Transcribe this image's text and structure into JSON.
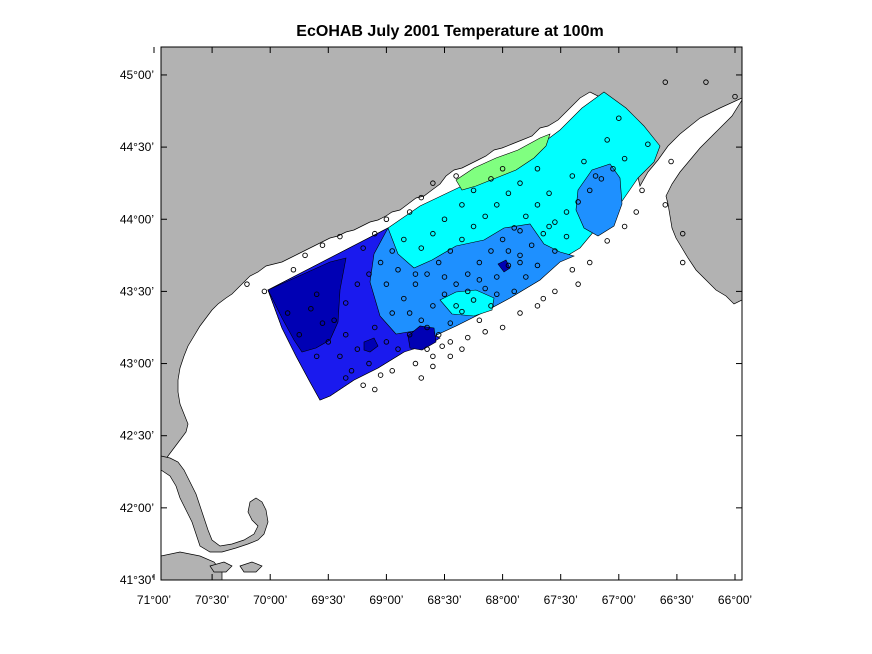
{
  "title": "EcOHAB   July 2001   Temperature at 100m",
  "x_axis": {
    "ticks": [
      "71°00’",
      "70°30’",
      "70°00’",
      "69°30’",
      "69°00’",
      "68°30’",
      "68°00’",
      "67°30’",
      "67°00’",
      "66°30’",
      "66°00’"
    ],
    "lon_values": [
      -71.0,
      -70.5,
      -70.0,
      -69.5,
      -69.0,
      -68.5,
      -68.0,
      -67.5,
      -67.0,
      -66.5,
      -66.0
    ],
    "range": [
      -71.0,
      -66.0
    ]
  },
  "y_axis": {
    "ticks": [
      "45°00’",
      "44°30’",
      "44°00’",
      "43°30’",
      "43°00’",
      "42°30’",
      "42°00’",
      "41°30’"
    ],
    "lat_values": [
      45.0,
      44.5,
      44.0,
      43.5,
      43.0,
      42.5,
      42.0,
      41.5
    ],
    "range": [
      41.5,
      45.2
    ]
  },
  "colors": {
    "land": "#b2b2b2",
    "water": "#ffffff",
    "band_coldest": "#0000b4",
    "band_cold": "#1a1aee",
    "band_mid": "#1e90ff",
    "band_warm": "#00ffff",
    "band_warmest": "#80ff80"
  },
  "stations": [
    [
      -69.35,
      43.42
    ],
    [
      -69.25,
      43.55
    ],
    [
      -69.15,
      43.62
    ],
    [
      -69.05,
      43.7
    ],
    [
      -68.95,
      43.78
    ],
    [
      -68.85,
      43.86
    ],
    [
      -69.45,
      43.3
    ],
    [
      -69.35,
      43.2
    ],
    [
      -69.25,
      43.1
    ],
    [
      -69.15,
      43.0
    ],
    [
      -69.05,
      42.92
    ],
    [
      -68.95,
      43.35
    ],
    [
      -68.85,
      43.45
    ],
    [
      -68.75,
      43.55
    ],
    [
      -68.65,
      43.62
    ],
    [
      -68.55,
      43.7
    ],
    [
      -68.45,
      43.78
    ],
    [
      -68.35,
      43.86
    ],
    [
      -68.25,
      43.95
    ],
    [
      -68.15,
      44.02
    ],
    [
      -68.05,
      44.1
    ],
    [
      -67.95,
      44.18
    ],
    [
      -67.85,
      44.25
    ],
    [
      -68.9,
      43.1
    ],
    [
      -68.8,
      43.2
    ],
    [
      -68.7,
      43.3
    ],
    [
      -68.6,
      43.4
    ],
    [
      -68.5,
      43.48
    ],
    [
      -68.4,
      43.55
    ],
    [
      -68.3,
      43.62
    ],
    [
      -68.2,
      43.7
    ],
    [
      -68.1,
      43.78
    ],
    [
      -68.0,
      43.86
    ],
    [
      -67.9,
      43.94
    ],
    [
      -67.8,
      44.02
    ],
    [
      -67.7,
      44.1
    ],
    [
      -67.6,
      44.18
    ],
    [
      -68.75,
      43.0
    ],
    [
      -68.65,
      43.1
    ],
    [
      -68.55,
      43.2
    ],
    [
      -68.45,
      43.28
    ],
    [
      -68.35,
      43.36
    ],
    [
      -68.25,
      43.44
    ],
    [
      -68.15,
      43.52
    ],
    [
      -68.05,
      43.6
    ],
    [
      -67.95,
      43.68
    ],
    [
      -67.85,
      43.75
    ],
    [
      -67.75,
      43.82
    ],
    [
      -67.65,
      43.9
    ],
    [
      -67.55,
      43.98
    ],
    [
      -67.45,
      44.05
    ],
    [
      -67.35,
      44.12
    ],
    [
      -67.25,
      44.2
    ],
    [
      -67.15,
      44.28
    ],
    [
      -67.05,
      44.35
    ],
    [
      -66.95,
      44.42
    ],
    [
      -66.75,
      44.52
    ],
    [
      -66.55,
      44.4
    ],
    [
      -66.6,
      44.1
    ],
    [
      -66.45,
      43.9
    ],
    [
      -66.45,
      43.7
    ],
    [
      -66.25,
      44.95
    ],
    [
      -66.0,
      44.85
    ],
    [
      -66.6,
      44.95
    ],
    [
      -67.0,
      44.7
    ],
    [
      -67.1,
      44.55
    ],
    [
      -69.6,
      43.48
    ],
    [
      -69.65,
      43.38
    ],
    [
      -69.55,
      43.28
    ],
    [
      -69.5,
      43.15
    ],
    [
      -69.4,
      43.05
    ],
    [
      -69.3,
      42.95
    ],
    [
      -69.2,
      42.85
    ],
    [
      -68.95,
      42.95
    ],
    [
      -68.7,
      42.9
    ],
    [
      -68.45,
      43.05
    ],
    [
      -68.3,
      43.18
    ],
    [
      -68.2,
      43.3
    ],
    [
      -68.1,
      43.4
    ],
    [
      -67.9,
      43.5
    ],
    [
      -67.8,
      43.6
    ],
    [
      -67.7,
      43.68
    ],
    [
      -67.55,
      43.78
    ],
    [
      -67.45,
      43.88
    ],
    [
      -69.0,
      43.55
    ],
    [
      -68.9,
      43.65
    ],
    [
      -68.7,
      43.8
    ],
    [
      -68.6,
      43.9
    ],
    [
      -68.5,
      44.0
    ],
    [
      -68.35,
      44.1
    ],
    [
      -68.25,
      44.2
    ],
    [
      -68.1,
      44.28
    ],
    [
      -68.0,
      44.35
    ],
    [
      -69.2,
      43.8
    ],
    [
      -69.1,
      43.9
    ],
    [
      -69.0,
      44.0
    ],
    [
      -68.8,
      44.05
    ],
    [
      -68.7,
      44.15
    ],
    [
      -68.6,
      44.25
    ],
    [
      -70.05,
      43.5
    ],
    [
      -70.2,
      43.55
    ],
    [
      -69.8,
      43.65
    ],
    [
      -69.7,
      43.75
    ],
    [
      -69.55,
      43.82
    ],
    [
      -69.4,
      43.88
    ],
    [
      -67.3,
      44.4
    ],
    [
      -67.2,
      44.3
    ],
    [
      -67.4,
      44.3
    ],
    [
      -68.4,
      44.3
    ],
    [
      -67.7,
      44.35
    ],
    [
      -69.1,
      43.25
    ],
    [
      -68.8,
      43.35
    ],
    [
      -68.45,
      43.15
    ],
    [
      -68.0,
      43.25
    ],
    [
      -67.65,
      43.45
    ],
    [
      -67.35,
      43.55
    ],
    [
      -67.25,
      43.7
    ],
    [
      -67.1,
      43.85
    ],
    [
      -66.95,
      43.95
    ],
    [
      -66.85,
      44.05
    ],
    [
      -66.8,
      44.2
    ],
    [
      -69.75,
      43.2
    ],
    [
      -69.85,
      43.35
    ],
    [
      -69.6,
      43.05
    ],
    [
      -69.35,
      42.9
    ],
    [
      -69.1,
      42.82
    ],
    [
      -68.6,
      42.98
    ],
    [
      -68.35,
      43.1
    ],
    [
      -68.15,
      43.22
    ],
    [
      -67.85,
      43.35
    ],
    [
      -67.55,
      43.5
    ],
    [
      -67.4,
      43.65
    ],
    [
      -69.0,
      43.15
    ],
    [
      -68.65,
      43.25
    ],
    [
      -68.4,
      43.4
    ],
    [
      -68.3,
      43.5
    ],
    [
      -68.05,
      43.48
    ],
    [
      -67.7,
      43.4
    ],
    [
      -68.75,
      43.62
    ],
    [
      -68.5,
      43.6
    ],
    [
      -68.2,
      43.58
    ],
    [
      -67.95,
      43.78
    ],
    [
      -67.85,
      43.92
    ],
    [
      -67.6,
      43.95
    ],
    [
      -68.6,
      43.05
    ],
    [
      -68.52,
      43.12
    ],
    [
      -67.85,
      43.7
    ]
  ]
}
